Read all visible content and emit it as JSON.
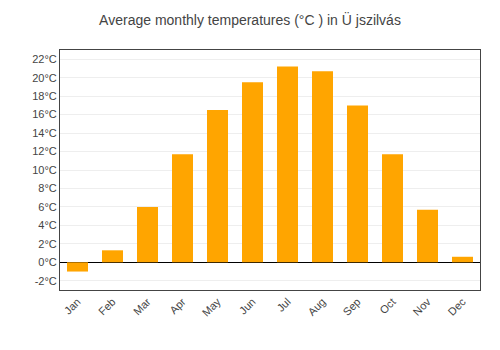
{
  "chart_data": {
    "type": "bar",
    "title": "Average monthly temperatures (°C ) in Ü jszilvás",
    "categories": [
      "Jan",
      "Feb",
      "Mar",
      "Apr",
      "May",
      "Jun",
      "Jul",
      "Aug",
      "Sep",
      "Oct",
      "Nov",
      "Dec"
    ],
    "values": [
      -1.0,
      1.3,
      6.0,
      11.7,
      16.5,
      19.5,
      21.2,
      20.7,
      17.0,
      11.7,
      5.7,
      0.6
    ],
    "color": "#FFA500",
    "ylim": [
      -3,
      23
    ],
    "yticks": [
      {
        "value": -2,
        "label": "-2°C"
      },
      {
        "value": 0,
        "label": "0°C"
      },
      {
        "value": 2,
        "label": "2°C"
      },
      {
        "value": 4,
        "label": "4°C"
      },
      {
        "value": 6,
        "label": "6°C"
      },
      {
        "value": 8,
        "label": "8°C"
      },
      {
        "value": 10,
        "label": "10°C"
      },
      {
        "value": 12,
        "label": "12°C"
      },
      {
        "value": 14,
        "label": "14°C"
      },
      {
        "value": 16,
        "label": "16°C"
      },
      {
        "value": 18,
        "label": "18°C"
      },
      {
        "value": 20,
        "label": "20°C"
      },
      {
        "value": 22,
        "label": "22°C"
      }
    ],
    "grid": true
  }
}
